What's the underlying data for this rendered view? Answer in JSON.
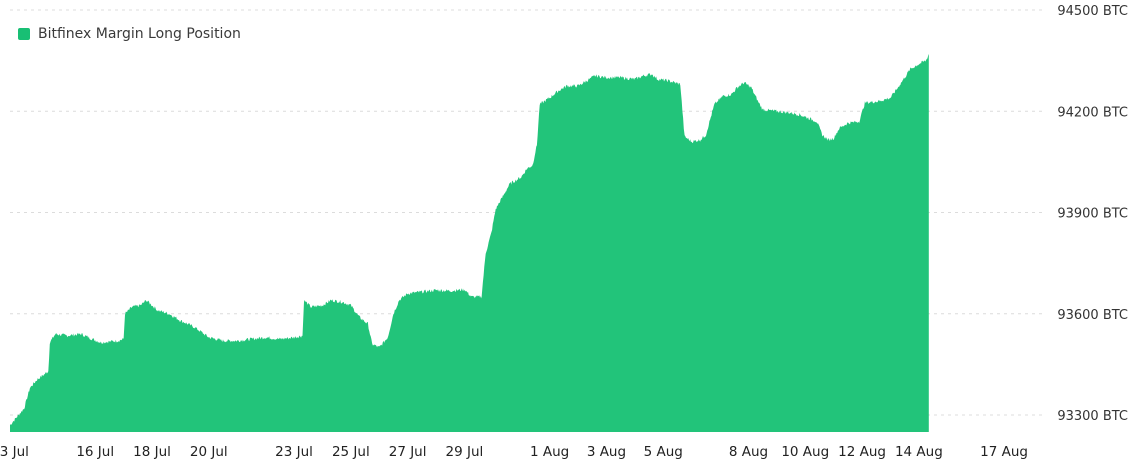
{
  "colors": {
    "area": "#22c47a",
    "grid": "#dcdcdc"
  },
  "legend": {
    "label": "Bitfinex Margin Long Position",
    "color": "#18bf74"
  },
  "chart_data": {
    "type": "area",
    "series": [
      {
        "name": "Bitfinex Margin Long Position"
      }
    ],
    "ylim": [
      93250,
      94500
    ],
    "yticks": [
      {
        "value": 94500,
        "label": "94500 BTC"
      },
      {
        "value": 94200,
        "label": "94200 BTC"
      },
      {
        "value": 93900,
        "label": "93900 BTC"
      },
      {
        "value": 93600,
        "label": "93600 BTC"
      },
      {
        "value": 93300,
        "label": "93300 BTC"
      }
    ],
    "xlim": [
      0,
      36.3
    ],
    "xticks": [
      {
        "x": 0,
        "label": "13 Jul"
      },
      {
        "x": 3,
        "label": "16 Jul"
      },
      {
        "x": 5,
        "label": "18 Jul"
      },
      {
        "x": 7,
        "label": "20 Jul"
      },
      {
        "x": 10,
        "label": "23 Jul"
      },
      {
        "x": 12,
        "label": "25 Jul"
      },
      {
        "x": 14,
        "label": "27 Jul"
      },
      {
        "x": 16,
        "label": "29 Jul"
      },
      {
        "x": 19,
        "label": "1 Aug"
      },
      {
        "x": 21,
        "label": "3 Aug"
      },
      {
        "x": 23,
        "label": "5 Aug"
      },
      {
        "x": 26,
        "label": "8 Aug"
      },
      {
        "x": 28,
        "label": "10 Aug"
      },
      {
        "x": 30,
        "label": "12 Aug"
      },
      {
        "x": 32,
        "label": "14 Aug"
      },
      {
        "x": 35,
        "label": "17 Aug"
      }
    ],
    "points": [
      [
        0.0,
        93270
      ],
      [
        0.3,
        93300
      ],
      [
        0.5,
        93320
      ],
      [
        0.7,
        93380
      ],
      [
        0.95,
        93405
      ],
      [
        1.2,
        93420
      ],
      [
        1.35,
        93430
      ],
      [
        1.4,
        93515
      ],
      [
        1.6,
        93540
      ],
      [
        2.0,
        93535
      ],
      [
        2.5,
        93540
      ],
      [
        2.9,
        93525
      ],
      [
        3.2,
        93515
      ],
      [
        3.8,
        93520
      ],
      [
        4.0,
        93525
      ],
      [
        4.05,
        93600
      ],
      [
        4.3,
        93620
      ],
      [
        4.6,
        93625
      ],
      [
        4.8,
        93640
      ],
      [
        5.2,
        93610
      ],
      [
        5.6,
        93600
      ],
      [
        6.0,
        93580
      ],
      [
        6.5,
        93560
      ],
      [
        7.0,
        93530
      ],
      [
        7.5,
        93520
      ],
      [
        8.0,
        93520
      ],
      [
        8.5,
        93525
      ],
      [
        9.0,
        93530
      ],
      [
        9.5,
        93525
      ],
      [
        10.0,
        93530
      ],
      [
        10.3,
        93535
      ],
      [
        10.35,
        93640
      ],
      [
        10.6,
        93620
      ],
      [
        11.0,
        93625
      ],
      [
        11.3,
        93640
      ],
      [
        11.7,
        93635
      ],
      [
        12.0,
        93625
      ],
      [
        12.3,
        93590
      ],
      [
        12.6,
        93570
      ],
      [
        12.75,
        93510
      ],
      [
        13.0,
        93500
      ],
      [
        13.3,
        93530
      ],
      [
        13.5,
        93600
      ],
      [
        13.7,
        93640
      ],
      [
        14.0,
        93660
      ],
      [
        14.5,
        93665
      ],
      [
        15.0,
        93670
      ],
      [
        15.5,
        93668
      ],
      [
        16.0,
        93672
      ],
      [
        16.25,
        93650
      ],
      [
        16.6,
        93650
      ],
      [
        16.75,
        93780
      ],
      [
        16.95,
        93840
      ],
      [
        17.1,
        93910
      ],
      [
        17.3,
        93940
      ],
      [
        17.6,
        93985
      ],
      [
        18.0,
        94005
      ],
      [
        18.2,
        94030
      ],
      [
        18.4,
        94040
      ],
      [
        18.55,
        94100
      ],
      [
        18.65,
        94220
      ],
      [
        19.0,
        94240
      ],
      [
        19.3,
        94260
      ],
      [
        19.6,
        94275
      ],
      [
        20.0,
        94275
      ],
      [
        20.3,
        94290
      ],
      [
        20.6,
        94305
      ],
      [
        21.0,
        94300
      ],
      [
        21.5,
        94300
      ],
      [
        22.0,
        94295
      ],
      [
        22.3,
        94305
      ],
      [
        22.6,
        94310
      ],
      [
        22.8,
        94295
      ],
      [
        23.2,
        94290
      ],
      [
        23.6,
        94280
      ],
      [
        23.75,
        94125
      ],
      [
        24.0,
        94110
      ],
      [
        24.3,
        94115
      ],
      [
        24.5,
        94130
      ],
      [
        24.8,
        94220
      ],
      [
        25.1,
        94245
      ],
      [
        25.4,
        94250
      ],
      [
        25.6,
        94270
      ],
      [
        25.85,
        94285
      ],
      [
        26.1,
        94270
      ],
      [
        26.3,
        94235
      ],
      [
        26.5,
        94205
      ],
      [
        27.0,
        94200
      ],
      [
        27.5,
        94195
      ],
      [
        27.8,
        94190
      ],
      [
        28.1,
        94180
      ],
      [
        28.4,
        94170
      ],
      [
        28.6,
        94130
      ],
      [
        28.8,
        94115
      ],
      [
        29.0,
        94120
      ],
      [
        29.2,
        94150
      ],
      [
        29.5,
        94165
      ],
      [
        29.9,
        94170
      ],
      [
        30.1,
        94225
      ],
      [
        30.6,
        94230
      ],
      [
        31.0,
        94240
      ],
      [
        31.3,
        94275
      ],
      [
        31.7,
        94325
      ],
      [
        32.0,
        94340
      ],
      [
        32.25,
        94350
      ],
      [
        32.35,
        94370
      ]
    ]
  }
}
